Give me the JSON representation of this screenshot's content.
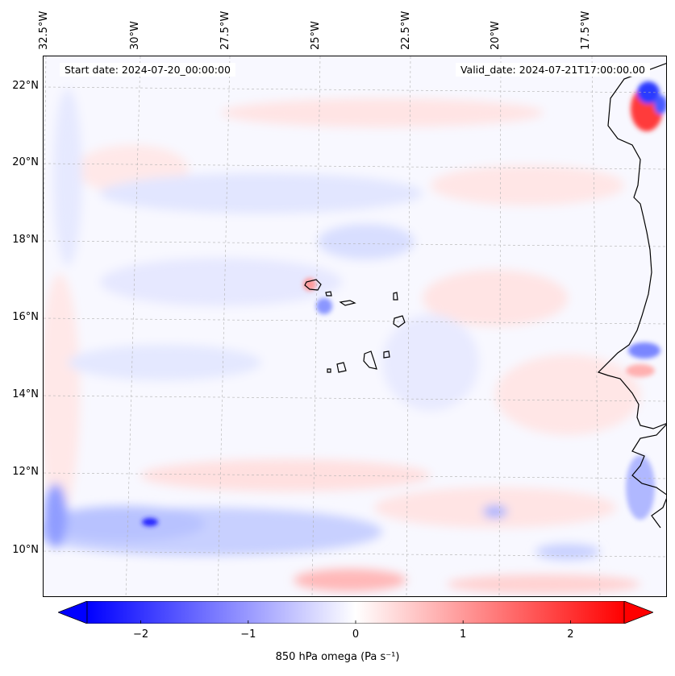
{
  "map": {
    "start_date": "Start date: 2024-07-20_00:00:00",
    "valid_date": "Valid_date: 2024-07-21T17:00:00.00",
    "lon_labels": [
      "32.5°W",
      "30°W",
      "27.5°W",
      "25°W",
      "22.5°W",
      "20°W",
      "17.5°W"
    ],
    "lat_labels": [
      "22°N",
      "20°N",
      "18°N",
      "16°N",
      "14°N",
      "12°N",
      "10°N"
    ],
    "gridlines": true,
    "coastline_color": "#000000",
    "features": [
      "Cabo Verde islands",
      "West African coastline"
    ]
  },
  "colorbar": {
    "label": "850 hPa omega (Pa s⁻¹)",
    "ticks": [
      "−2",
      "−1",
      "0",
      "1",
      "2"
    ],
    "tick_values": [
      -2,
      -1,
      0,
      1,
      2
    ],
    "range": [
      -2.5,
      2.5
    ],
    "colormap": "bwr",
    "min_color": "#0000ff",
    "mid_color": "#ffffff",
    "max_color": "#ff0000",
    "extend": "both"
  }
}
